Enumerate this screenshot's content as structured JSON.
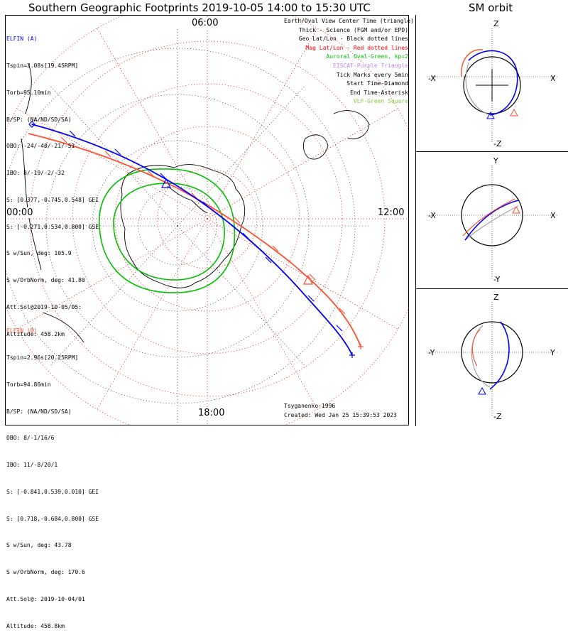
{
  "title": "Southern Geographic Footprints 2019-10-05 14:00 to 15:30 UTC",
  "orbit_title": "SM orbit",
  "clock_labels": {
    "t06": "06:00",
    "t00": "00:00",
    "t12": "12:00",
    "t18": "18:00"
  },
  "elfin_a": {
    "name": "ELFIN (A)",
    "color": "#0000ff",
    "lines": [
      "Tspin=3.08s[19.45RPM]",
      "Torb=95.10min",
      "B/SP: (NA/ND/SD/SA)",
      "OBO: -24/-40/-21/-51",
      "IBO: 8/-19/-2/-32",
      "S: [0.377,-0.745,0.548] GEI",
      "S: [-0.271,0.534,0.800] GSE",
      "S w/Sun, deg: 105.9",
      "S w/OrbNorm, deg: 41.80",
      "Att.Sol@2019-10-05/05:",
      "Altitude: 458.2km"
    ]
  },
  "elfin_b": {
    "name": "ELFIN (B)",
    "color": "#ff5030",
    "lines": [
      "Tspin=2.96s[20.25RPM]",
      "Torb=94.86min",
      "B/SP: (NA/ND/SD/SA)",
      "OBO: 8/-1/16/6",
      "IBO: 11/-8/20/1",
      "S: [-0.841,0.539,0.010] GEI",
      "S: [0.718,-0.684,0.800] GSE",
      "S w/Sun, deg: 43.78",
      "S w/OrbNorm, deg: 170.6",
      "Att.Sol@: 2019-10-04/01",
      "Altitude: 458.8km"
    ]
  },
  "legend": [
    {
      "text": "Earth/Oval View Center Time (triangle)",
      "color": "#000000"
    },
    {
      "text": "Thick - Science (FGM and/or EPD)",
      "color": "#000000"
    },
    {
      "text": "Geo Lat/Lon - Black dotted lines",
      "color": "#000000"
    },
    {
      "text": "Mag Lat/Lon - Red dotted lines",
      "color": "#ff0000"
    },
    {
      "text": "Auroral Oval-Green, kp=2",
      "color": "#00c000"
    },
    {
      "text": "EISCAT-Purple Triangle",
      "color": "#c080ff"
    },
    {
      "text": "Tick Marks every 5min",
      "color": "#000000"
    },
    {
      "text": "Start Time-Diamond",
      "color": "#000000"
    },
    {
      "text": "End Time-Asterisk",
      "color": "#000000"
    },
    {
      "text": "VLF-Green Square",
      "color": "#80d040"
    }
  ],
  "credit_author": "Tsyganenko-1996",
  "credit_created": "Created: Wed Jan 25 15:39:53 2023",
  "sm_panels": [
    {
      "top": "Z",
      "bottom": "-Z",
      "left": "-X",
      "right": "X"
    },
    {
      "top": "Y",
      "bottom": "-Y",
      "left": "-X",
      "right": "X"
    },
    {
      "top": "Z",
      "bottom": "-Z",
      "left": "-Y",
      "right": "Y"
    }
  ],
  "colors": {
    "elfin_a": "#0000ff",
    "elfin_b": "#ff5030",
    "mag_grid": "#ff0000",
    "aurora": "#00c000",
    "back_track": "#a0a0a0"
  }
}
